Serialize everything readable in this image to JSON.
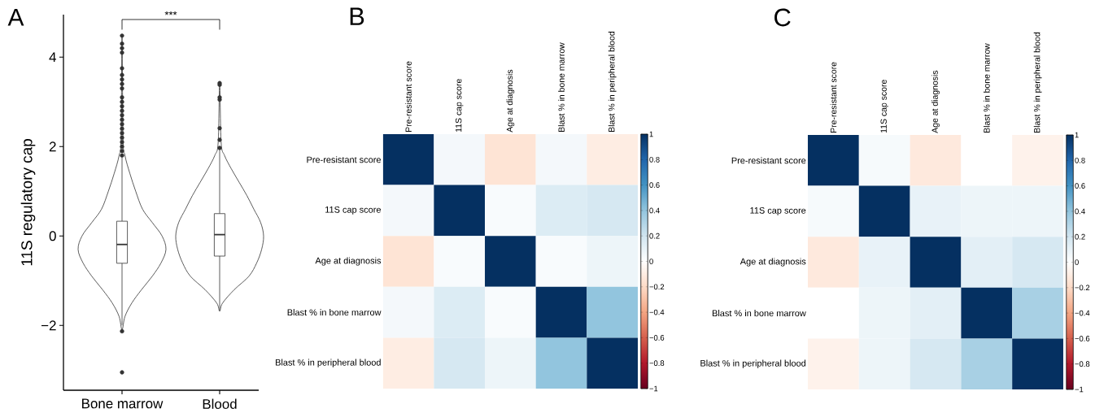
{
  "chart_data": [
    {
      "type": "box",
      "title": "A",
      "ylabel": "11S regulatory cap",
      "categories": [
        "Bone marrow",
        "Blood"
      ],
      "ylim": [
        -3.45,
        4.95
      ],
      "yticks": [
        {
          "value": -2,
          "label": "−2"
        },
        0,
        2,
        4
      ],
      "boxes": [
        {
          "low": -2.0,
          "q1": -0.61,
          "median": -0.19,
          "q3": 0.33,
          "high": 1.75,
          "outliers": [
            -3.05,
            -2.13,
            1.8,
            1.9,
            2.0,
            2.1,
            2.2,
            2.3,
            2.4,
            2.5,
            2.6,
            2.7,
            2.8,
            2.9,
            3.0,
            3.1,
            3.3,
            3.4,
            3.5,
            3.6,
            3.75,
            4.1,
            4.2,
            4.3,
            4.48
          ]
        },
        {
          "low": -1.68,
          "q1": -0.45,
          "median": 0.03,
          "q3": 0.5,
          "high": 1.95,
          "outliers": [
            1.97,
            2.15,
            2.41,
            3.05,
            3.1,
            3.38,
            3.42
          ]
        }
      ],
      "annotations": [
        "***"
      ]
    },
    {
      "type": "heatmap",
      "title": "B",
      "categories": [
        "Pre-resistant score",
        "11S cap score",
        "Age at diagnosis",
        "Blast % in bone marrow",
        "Blast % in peripheral blood"
      ],
      "y_categories": [
        "Pre-resistant score",
        "11S cap score",
        "Age at diagnosis",
        "Blast % in bone marrow",
        "Blast % in peripheral blood"
      ],
      "cells": [
        [
          1,
          0.05,
          -0.15,
          0.05,
          -0.1
        ],
        [
          0.05,
          1,
          0.03,
          0.15,
          0.18
        ],
        [
          -0.15,
          0.03,
          1,
          0.03,
          0.08
        ],
        [
          0.05,
          0.15,
          0.03,
          1,
          0.4
        ],
        [
          -0.1,
          0.18,
          0.08,
          0.4,
          1
        ]
      ],
      "clim": [
        -1,
        1
      ],
      "cticks": [
        {
          "value": -1,
          "label": "−1"
        },
        {
          "value": -0.8,
          "label": "−0.8"
        },
        {
          "value": -0.6,
          "label": "−0.6"
        },
        {
          "value": -0.4,
          "label": "−0.4"
        },
        {
          "value": -0.2,
          "label": "−0.2"
        },
        0,
        0.2,
        0.4,
        0.6,
        0.8,
        1
      ]
    },
    {
      "type": "heatmap",
      "title": "C",
      "categories": [
        "Pre-resistant score",
        "11S cap score",
        "Age at diagnosis",
        "Blast % in bone marrow",
        "Blast % in peripheral blood"
      ],
      "y_categories": [
        "Pre-resistant score",
        "11S cap score",
        "Age at diagnosis",
        "Blast % in bone marrow",
        "Blast % in peripheral blood"
      ],
      "cells": [
        [
          1,
          0.04,
          -0.12,
          0.0,
          -0.07
        ],
        [
          0.04,
          1,
          0.1,
          0.08,
          0.08
        ],
        [
          -0.12,
          0.1,
          1,
          0.12,
          0.18
        ],
        [
          0.0,
          0.08,
          0.12,
          1,
          0.33
        ],
        [
          -0.07,
          0.08,
          0.18,
          0.33,
          1
        ]
      ],
      "clim": [
        -1,
        1
      ],
      "cticks": [
        {
          "value": -1,
          "label": "−1"
        },
        {
          "value": -0.8,
          "label": "−0.8"
        },
        {
          "value": -0.6,
          "label": "−0.6"
        },
        {
          "value": -0.4,
          "label": "−0.4"
        },
        {
          "value": -0.2,
          "label": "−0.2"
        },
        0,
        0.2,
        0.4,
        0.6,
        0.8,
        1
      ]
    }
  ]
}
